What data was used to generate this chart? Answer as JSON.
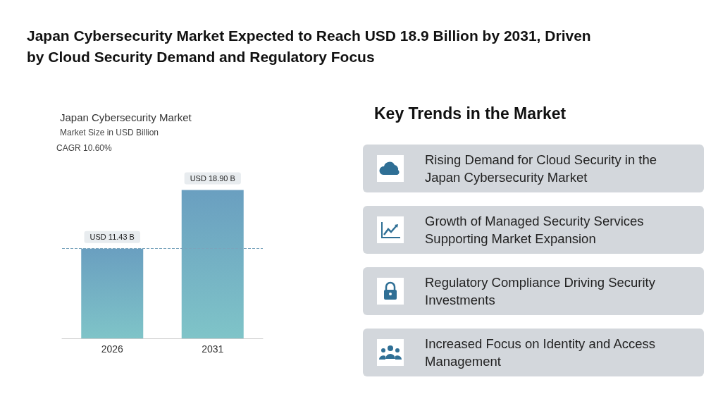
{
  "chart_data": [
    {
      "type": "other",
      "title": "Japan Cybersecurity Market Expected to Reach USD 18.9 Billion by 2031, Driven by Cloud Security Demand and Regulatory Focus"
    },
    {
      "type": "bar",
      "title": "Japan Cybersecurity Market",
      "subtitle": "Market Size in USD Billion",
      "annotations": [
        "CAGR 10.60%"
      ],
      "categories": [
        "2026",
        "2031"
      ],
      "values": [
        11.43,
        18.9
      ],
      "value_labels": [
        "USD 11.43 B",
        "USD 18.90 B"
      ],
      "color": "#6a9fc0",
      "ref_lines": [
        {
          "axis": "y",
          "value": 11.43,
          "color": "#7aa5bd",
          "line_style": "dashed"
        }
      ]
    },
    {
      "type": "other",
      "title": "Key Trends in the Market",
      "annotations": [
        "Rising Demand for Cloud Security in the Japan Cybersecurity Market",
        "Growth of Managed Security Services Supporting Market Expansion",
        "Regulatory Compliance Driving Security Investments",
        "Increased Focus on Identity and Access Management"
      ]
    }
  ]
}
